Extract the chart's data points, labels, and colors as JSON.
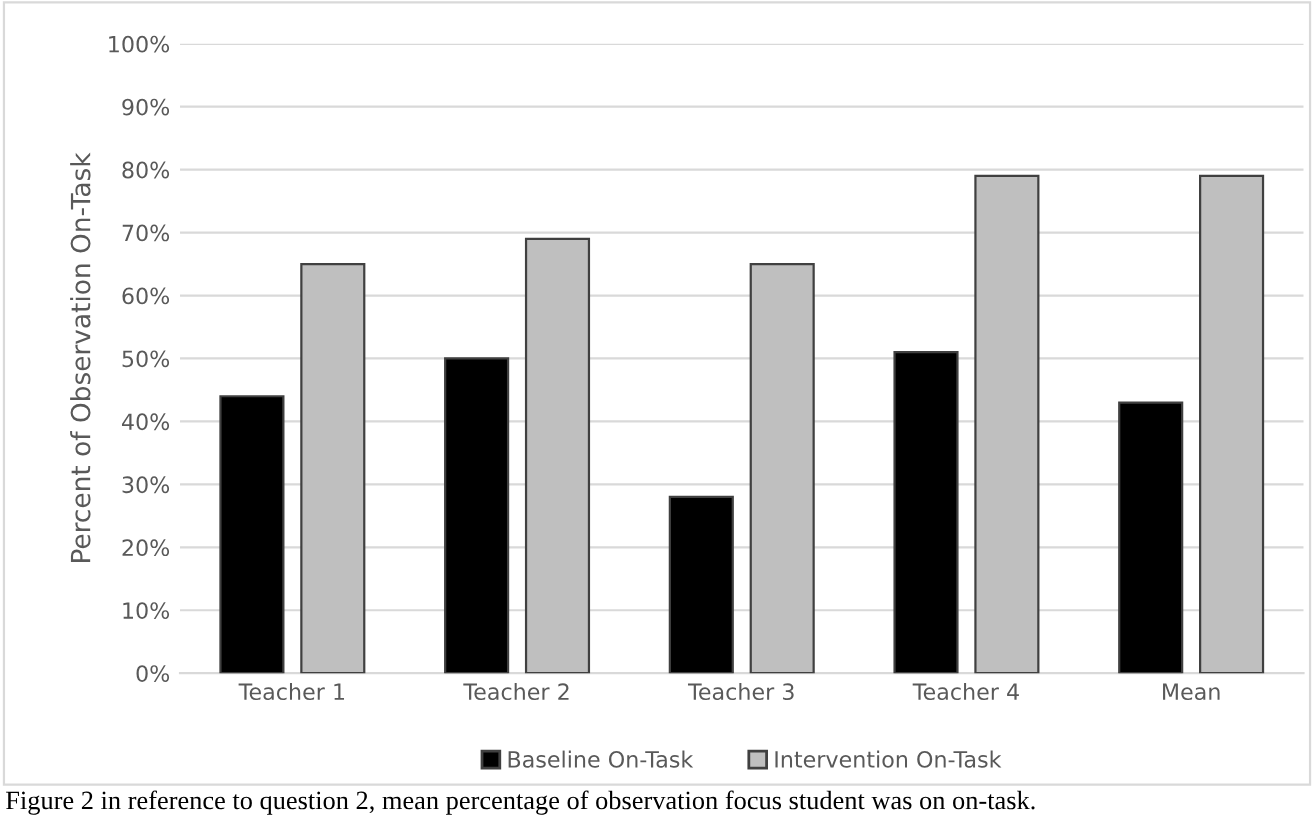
{
  "chart_data": {
    "type": "bar",
    "ylabel": "Percent of Observation On-Task",
    "categories": [
      "Teacher 1",
      "Teacher 2",
      "Teacher 3",
      "Teacher 4",
      "Mean"
    ],
    "series": [
      {
        "name": "Baseline On-Task",
        "color": "#000000",
        "values": [
          44,
          50,
          28,
          51,
          43
        ]
      },
      {
        "name": "Intervention On-Task",
        "color": "#bfbfbf",
        "values": [
          65,
          69,
          65,
          79,
          79
        ]
      }
    ],
    "ylim": [
      0,
      100
    ],
    "yticks": [
      {
        "value": 0,
        "label": "0%"
      },
      {
        "value": 10,
        "label": "10%"
      },
      {
        "value": 20,
        "label": "20%"
      },
      {
        "value": 30,
        "label": "30%"
      },
      {
        "value": 40,
        "label": "40%"
      },
      {
        "value": 50,
        "label": "50%"
      },
      {
        "value": 60,
        "label": "60%"
      },
      {
        "value": 70,
        "label": "70%"
      },
      {
        "value": 80,
        "label": "80%"
      },
      {
        "value": 90,
        "label": "90%"
      },
      {
        "value": 100,
        "label": "100%"
      }
    ],
    "grid": "y",
    "legend": "bottom",
    "annotations": [
      "Figure 2 in reference to question 2, mean percentage of observation focus student was on on-task."
    ]
  }
}
